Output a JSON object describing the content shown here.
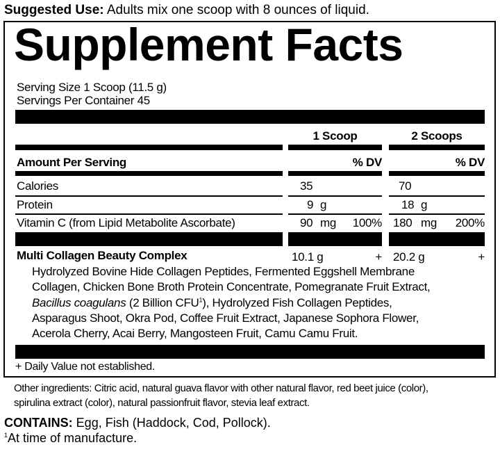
{
  "suggested_use": {
    "label": "Suggested Use:",
    "text": " Adults mix one scoop with 8 ounces of liquid."
  },
  "title": "Supplement Facts",
  "serving_size": "Serving Size 1 Scoop (11.5 g)",
  "servings_per_container": "Servings Per Container 45",
  "columns": {
    "col1": "1 Scoop",
    "col2": "2 Scoops"
  },
  "amount_per_serving": "Amount Per Serving",
  "dv_header": "% DV",
  "rows": [
    {
      "name": "Calories",
      "v1": "35",
      "u1": "",
      "dv1": "",
      "v2": "70",
      "u2": "",
      "dv2": ""
    },
    {
      "name": "Protein",
      "v1": "9",
      "u1": "g",
      "dv1": "",
      "v2": "18",
      "u2": "g",
      "dv2": ""
    },
    {
      "name": "Vitamin C (from Lipid Metabolite Ascorbate)",
      "v1": "90",
      "u1": "mg",
      "dv1": "100%",
      "v2": "180",
      "u2": "mg",
      "dv2": "200%"
    }
  ],
  "blend": {
    "name": "Multi Collagen Beauty Complex",
    "v1": "10.1 g",
    "dv1": "+",
    "v2": "20.2 g",
    "dv2": "+",
    "lines": [
      "Hydrolyzed Bovine Hide Collagen Peptides, Fermented Eggshell Membrane",
      "Collagen, Chicken Bone Broth Protein Concentrate, Pomegranate Fruit Extract,"
    ],
    "line3_italic": "Bacillus coagulans",
    "line3_mid": " (2 Billion CFU",
    "line3_sup": "1",
    "line3_rest": "), Hydrolyzed Fish Collagen Peptides,",
    "lines_after": [
      "Asparagus Shoot, Okra Pod, Coffee Fruit Extract, Japanese Sophora Flower,",
      "Acerola Cherry, Acai Berry, Mangosteen Fruit, Camu Camu Fruit."
    ]
  },
  "dv_note": "+ Daily Value not established.",
  "other_ingredients": [
    "Other ingredients: Citric acid, natural guava flavor with other natural flavor, red beet juice (color),",
    "spirulina extract (color), natural passionfruit flavor, stevia leaf extract."
  ],
  "contains": {
    "label": "CONTAINS:",
    "text": " Egg, Fish (Haddock, Cod, Pollock)."
  },
  "footnote": {
    "sup": "1",
    "text": "At time of manufacture."
  }
}
